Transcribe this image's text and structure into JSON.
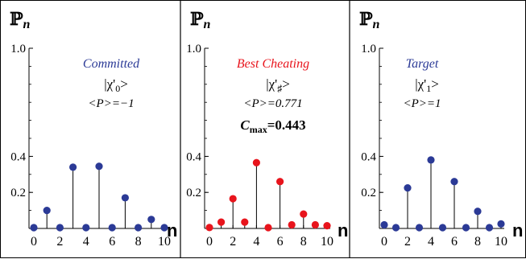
{
  "chart_data": [
    {
      "type": "scatter",
      "style": "stem",
      "ylabel": "ℙ",
      "ylabel_sub": "n",
      "xlabel": "n",
      "xticks": [
        "0",
        "2",
        "4",
        "6",
        "8",
        "10"
      ],
      "yticks": [
        "0.2",
        "0.4",
        "1.0"
      ],
      "xlim": [
        0,
        10
      ],
      "ylim": [
        0,
        1.0
      ],
      "marker_color": "#2b3a96",
      "annotation": {
        "title": "Committed",
        "title_color": "#2b3a96",
        "state_prefix": "|χ'",
        "state_sub": "0",
        "state_suffix": ">",
        "expectation": "<P>=−1",
        "extra": ""
      },
      "series": [
        {
          "x": [
            0,
            1,
            2,
            3,
            4,
            5,
            6,
            7,
            8,
            9,
            10
          ],
          "y": [
            0.0,
            0.1,
            0.0,
            0.34,
            0.0,
            0.345,
            0.0,
            0.17,
            0.0,
            0.05,
            0.0
          ]
        }
      ]
    },
    {
      "type": "scatter",
      "style": "stem",
      "ylabel": "ℙ",
      "ylabel_sub": "n",
      "xlabel": "n",
      "xticks": [
        "0",
        "2",
        "4",
        "6",
        "8",
        "10"
      ],
      "yticks": [
        "0.2",
        "0.4",
        "1.0"
      ],
      "xlim": [
        0,
        10
      ],
      "ylim": [
        0,
        1.0
      ],
      "marker_color": "#e8141c",
      "annotation": {
        "title": "Best Cheating",
        "title_color": "#e8141c",
        "state_prefix": "|χ'",
        "state_sub": "♯",
        "state_suffix": ">",
        "expectation": "<P>=0.771",
        "extra_label": "C",
        "extra_sub": "max",
        "extra_value": "=0.443"
      },
      "series": [
        {
          "x": [
            0,
            1,
            2,
            3,
            4,
            5,
            6,
            7,
            8,
            9,
            10
          ],
          "y": [
            0.005,
            0.035,
            0.165,
            0.035,
            0.365,
            0.0,
            0.26,
            0.02,
            0.08,
            0.02,
            0.015
          ]
        }
      ]
    },
    {
      "type": "scatter",
      "style": "stem",
      "ylabel": "ℙ",
      "ylabel_sub": "n",
      "xlabel": "n",
      "xticks": [
        "0",
        "2",
        "4",
        "6",
        "8",
        "10"
      ],
      "yticks": [
        "0.2",
        "0.4",
        "1.0"
      ],
      "xlim": [
        0,
        10
      ],
      "ylim": [
        0,
        1.0
      ],
      "marker_color": "#2b3a96",
      "annotation": {
        "title": "Target",
        "title_color": "#2b3a96",
        "state_prefix": "|χ'",
        "state_sub": "1",
        "state_suffix": ">",
        "expectation": "<P>=1",
        "extra": ""
      },
      "series": [
        {
          "x": [
            0,
            1,
            2,
            3,
            4,
            5,
            6,
            7,
            8,
            9,
            10
          ],
          "y": [
            0.02,
            0.0,
            0.225,
            0.0,
            0.38,
            0.0,
            0.26,
            0.0,
            0.095,
            0.0,
            0.025
          ]
        }
      ]
    }
  ]
}
